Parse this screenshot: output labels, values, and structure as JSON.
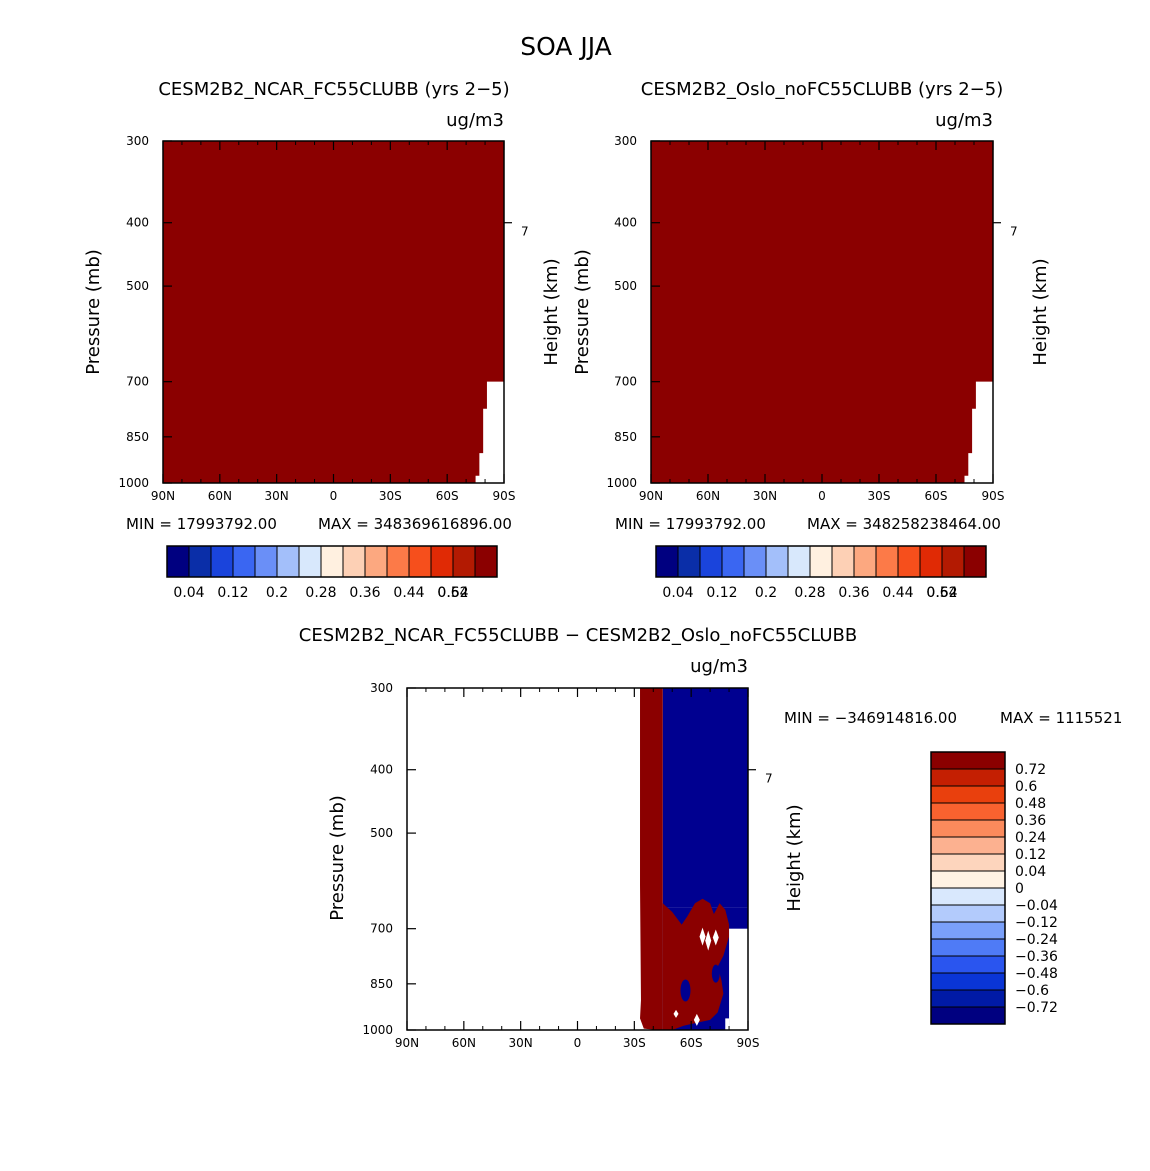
{
  "title": "SOA JJA",
  "colors": {
    "dark_red": "#8b0000",
    "dark_blue": "#000090"
  },
  "chart_data": [
    {
      "type": "heatmap",
      "title": "CESM2B2_NCAR_FC55CLUBB (yrs 2−5)",
      "units": "ug/m3",
      "ylabel": "Pressure (mb)",
      "ylabel_right": "Height (km)",
      "right_ticks": [
        {
          "label": "7",
          "p": 400
        }
      ],
      "x_ticks": [
        "90N",
        "60N",
        "30N",
        "0",
        "30S",
        "60S",
        "90S"
      ],
      "y_ticks": [
        300,
        400,
        500,
        700,
        850,
        1000
      ],
      "xlim": [
        -90,
        90
      ],
      "ylim": [
        1000,
        300
      ],
      "min_label": "MIN = 17993792.00",
      "max_label": "MAX = 348369616896.00",
      "field": "nearly uniform maximum (> 0.64) everywhere; missing below ~700 mb poleward of ~80S",
      "colorbar": {
        "colors": [
          "#000080",
          "#0a2ea8",
          "#1a44dc",
          "#3a66f2",
          "#6a8ff7",
          "#a3bffa",
          "#d8e8fc",
          "#fff0e0",
          "#fdd0b5",
          "#fca880",
          "#fc7a48",
          "#f64f1c",
          "#e02a05",
          "#b31a02",
          "#8b0000"
        ],
        "labels": [
          "0.04",
          "0.12",
          "0.2",
          "0.28",
          "0.36",
          "0.44",
          "0.52",
          "0.64"
        ]
      }
    },
    {
      "type": "heatmap",
      "title": "CESM2B2_Oslo_noFC55CLUBB (yrs 2−5)",
      "units": "ug/m3",
      "ylabel": "Pressure (mb)",
      "ylabel_right": "Height (km)",
      "right_ticks": [
        {
          "label": "7",
          "p": 400
        }
      ],
      "x_ticks": [
        "90N",
        "60N",
        "30N",
        "0",
        "30S",
        "60S",
        "90S"
      ],
      "y_ticks": [
        300,
        400,
        500,
        700,
        850,
        1000
      ],
      "xlim": [
        -90,
        90
      ],
      "ylim": [
        1000,
        300
      ],
      "min_label": "MIN = 17993792.00",
      "max_label": "MAX = 348258238464.00",
      "field": "nearly uniform maximum (> 0.64) everywhere; missing below ~700 mb poleward of ~80S",
      "colorbar": {
        "colors": [
          "#000080",
          "#0a2ea8",
          "#1a44dc",
          "#3a66f2",
          "#6a8ff7",
          "#a3bffa",
          "#d8e8fc",
          "#fff0e0",
          "#fdd0b5",
          "#fca880",
          "#fc7a48",
          "#f64f1c",
          "#e02a05",
          "#b31a02",
          "#8b0000"
        ],
        "labels": [
          "0.04",
          "0.12",
          "0.2",
          "0.28",
          "0.36",
          "0.44",
          "0.52",
          "0.64"
        ]
      }
    },
    {
      "type": "heatmap",
      "title": "CESM2B2_NCAR_FC55CLUBB − CESM2B2_Oslo_noFC55CLUBB",
      "units": "ug/m3",
      "ylabel": "Pressure (mb)",
      "ylabel_right": "Height (km)",
      "right_ticks": [
        {
          "label": "7",
          "p": 400
        }
      ],
      "x_ticks": [
        "90N",
        "60N",
        "30N",
        "0",
        "30S",
        "60S",
        "90S"
      ],
      "y_ticks": [
        300,
        400,
        500,
        700,
        850,
        1000
      ],
      "xlim": [
        -90,
        90
      ],
      "ylim": [
        1000,
        300
      ],
      "min_label": "MIN = −346914816.00",
      "max_label": "MAX = 1115521",
      "field": "near zero north of ~33S; strong positive band ~33S–45S; strong negative poleward of ~45S above ~650 mb with positive patches below; missing poleward of ~80S below ~700 mb",
      "colorbar": {
        "colors": [
          "#000080",
          "#001aa6",
          "#0a35d6",
          "#2a55ef",
          "#4f7bf6",
          "#7aa0fa",
          "#b3cbfc",
          "#d9e8fd",
          "#fff2e3",
          "#fdd5bd",
          "#fcb190",
          "#fb8a5c",
          "#f9622f",
          "#e9400d",
          "#c41f02",
          "#8b0000"
        ],
        "labels": [
          "−0.72",
          "−0.6",
          "−0.48",
          "−0.36",
          "−0.24",
          "−0.12",
          "−0.04",
          "0",
          "0.04",
          "0.12",
          "0.24",
          "0.36",
          "0.48",
          "0.6",
          "0.72"
        ]
      }
    }
  ]
}
